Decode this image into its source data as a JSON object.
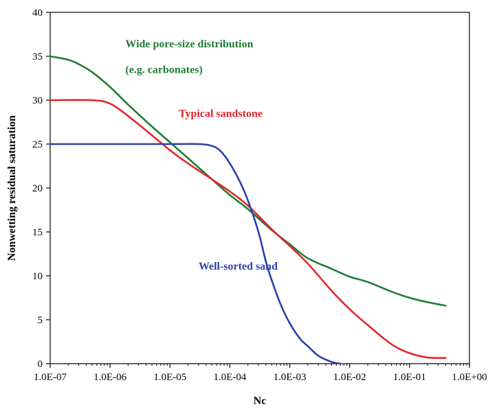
{
  "chart_data": {
    "type": "line",
    "title": "",
    "xlabel": "Nc",
    "ylabel": "Nonwetting residual saturation",
    "x_scale": "log",
    "xlim": [
      1e-07,
      1
    ],
    "ylim": [
      0,
      40
    ],
    "grid": false,
    "legend": "none",
    "x_tick_values": [
      1e-07,
      1e-06,
      1e-05,
      0.0001,
      0.001,
      0.01,
      0.1,
      1
    ],
    "x_tick_labels": [
      "1.0E-07",
      "1.0E-06",
      "1.0E-05",
      "1.0E-04",
      "1.0E-03",
      "1.0E-02",
      "1.0E-01",
      "1.0E+00"
    ],
    "y_ticks": [
      0,
      5,
      10,
      15,
      20,
      25,
      30,
      35,
      40
    ],
    "y_tick_labels": [
      "0",
      "5",
      "10",
      "15",
      "20",
      "25",
      "30",
      "35",
      "40"
    ],
    "series": [
      {
        "key": "wide-pore",
        "color": "#1e7d32",
        "points": [
          [
            1e-07,
            35.0
          ],
          [
            2e-07,
            34.6
          ],
          [
            3e-07,
            34.1
          ],
          [
            5e-07,
            33.2
          ],
          [
            1e-06,
            31.5
          ],
          [
            2e-06,
            29.5
          ],
          [
            5e-06,
            27.0
          ],
          [
            1e-05,
            25.2
          ],
          [
            2e-05,
            23.4
          ],
          [
            5e-05,
            21.0
          ],
          [
            0.0001,
            19.2
          ],
          [
            0.0002,
            17.6
          ],
          [
            0.0005,
            15.2
          ],
          [
            0.001,
            13.6
          ],
          [
            0.002,
            12.0
          ],
          [
            0.005,
            10.8
          ],
          [
            0.01,
            9.9
          ],
          [
            0.02,
            9.3
          ],
          [
            0.05,
            8.2
          ],
          [
            0.1,
            7.5
          ],
          [
            0.2,
            7.0
          ],
          [
            0.4,
            6.6
          ]
        ]
      },
      {
        "key": "typical-sandstone",
        "color": "#e3252b",
        "points": [
          [
            1e-07,
            30.0
          ],
          [
            5e-07,
            30.0
          ],
          [
            1e-06,
            29.6
          ],
          [
            2e-06,
            28.2
          ],
          [
            5e-06,
            26.0
          ],
          [
            1e-05,
            24.3
          ],
          [
            2e-05,
            22.8
          ],
          [
            5e-05,
            21.0
          ],
          [
            0.0001,
            19.6
          ],
          [
            0.0002,
            18.0
          ],
          [
            0.0005,
            15.3
          ],
          [
            0.001,
            13.4
          ],
          [
            0.002,
            11.4
          ],
          [
            0.005,
            8.3
          ],
          [
            0.01,
            6.2
          ],
          [
            0.02,
            4.4
          ],
          [
            0.05,
            2.2
          ],
          [
            0.1,
            1.2
          ],
          [
            0.2,
            0.7
          ],
          [
            0.4,
            0.65
          ]
        ]
      },
      {
        "key": "well-sorted-sand",
        "color": "#2b3faa",
        "points": [
          [
            1e-07,
            25.0
          ],
          [
            1e-06,
            25.0
          ],
          [
            1e-05,
            25.0
          ],
          [
            3e-05,
            25.0
          ],
          [
            5e-05,
            24.8
          ],
          [
            7e-05,
            24.2
          ],
          [
            0.0001,
            22.8
          ],
          [
            0.00015,
            20.6
          ],
          [
            0.0002,
            18.6
          ],
          [
            0.0003,
            15.0
          ],
          [
            0.0004,
            11.6
          ],
          [
            0.0005,
            9.5
          ],
          [
            0.0007,
            6.8
          ],
          [
            0.001,
            4.6
          ],
          [
            0.0015,
            2.8
          ],
          [
            0.002,
            2.0
          ],
          [
            0.003,
            0.9
          ],
          [
            0.005,
            0.2
          ],
          [
            0.007,
            0.0
          ]
        ]
      }
    ],
    "annotations": [
      {
        "key": "wide-pore-line1",
        "text": "Wide pore-size distribution",
        "color": "#1e7d32",
        "x": 1.8e-06,
        "y": 36.0
      },
      {
        "key": "wide-pore-line2",
        "text": "(e.g. carbonates)",
        "color": "#1e7d32",
        "x": 1.8e-06,
        "y": 33.1
      },
      {
        "key": "typical-sandstone",
        "text": "Typical sandstone",
        "color": "#e3252b",
        "x": 1.4e-05,
        "y": 28.1
      },
      {
        "key": "well-sorted-sand",
        "text": "Well-sorted sand",
        "color": "#2b3faa",
        "x": 3e-05,
        "y": 10.7
      }
    ]
  }
}
